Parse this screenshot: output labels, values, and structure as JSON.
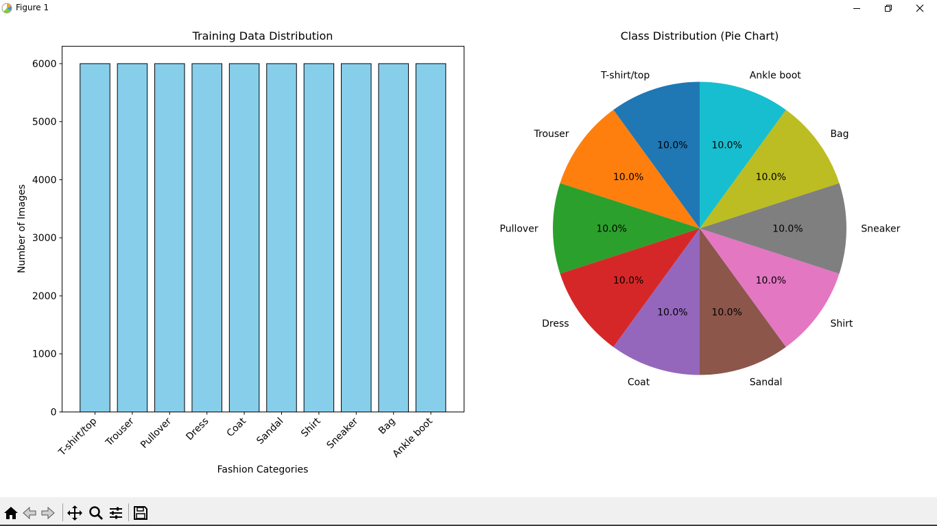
{
  "window": {
    "title": "Figure 1"
  },
  "toolbar": {
    "buttons": [
      "home-icon",
      "back-arrow-icon",
      "forward-arrow-icon",
      "pan-icon",
      "zoom-icon",
      "subplots-icon",
      "save-icon"
    ]
  },
  "chart_data": [
    {
      "type": "bar",
      "title": "Training Data Distribution",
      "xlabel": "Fashion Categories",
      "ylabel": "Number of Images",
      "categories": [
        "T-shirt/top",
        "Trouser",
        "Pullover",
        "Dress",
        "Coat",
        "Sandal",
        "Shirt",
        "Sneaker",
        "Bag",
        "Ankle boot"
      ],
      "values": [
        6000,
        6000,
        6000,
        6000,
        6000,
        6000,
        6000,
        6000,
        6000,
        6000
      ],
      "yticks": [
        "0",
        "1000",
        "2000",
        "3000",
        "4000",
        "5000",
        "6000"
      ],
      "ylim": [
        0,
        6300
      ],
      "bar_color": "#87ceeb",
      "edge_color": "#000000",
      "grid": false
    },
    {
      "type": "pie",
      "title": "Class Distribution (Pie Chart)",
      "labels": [
        "T-shirt/top",
        "Trouser",
        "Pullover",
        "Dress",
        "Coat",
        "Sandal",
        "Shirt",
        "Sneaker",
        "Bag",
        "Ankle boot"
      ],
      "values": [
        6000,
        6000,
        6000,
        6000,
        6000,
        6000,
        6000,
        6000,
        6000,
        6000
      ],
      "pct_labels": [
        "10.0%",
        "10.0%",
        "10.0%",
        "10.0%",
        "10.0%",
        "10.0%",
        "10.0%",
        "10.0%",
        "10.0%",
        "10.0%"
      ],
      "colors": [
        "#1f77b4",
        "#ff7f0e",
        "#2ca02c",
        "#d62728",
        "#9467bd",
        "#8c564b",
        "#e377c2",
        "#7f7f7f",
        "#bcbd22",
        "#17becf"
      ],
      "start_angle_deg": 90,
      "direction": "counterclockwise"
    }
  ]
}
